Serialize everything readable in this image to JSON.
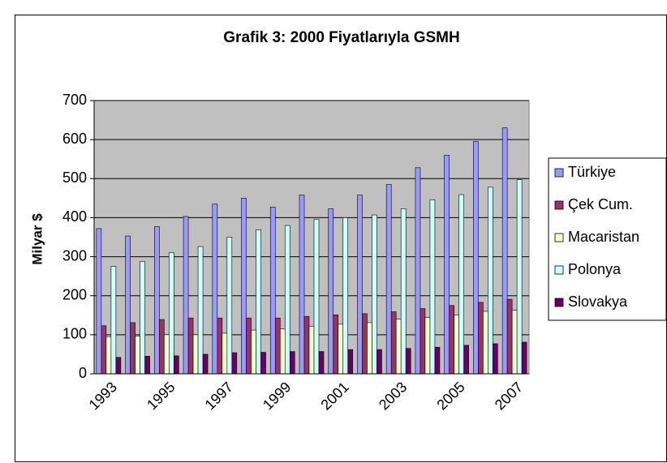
{
  "chart_data": {
    "type": "bar",
    "title": "Grafik 3: 2000 Fiyatlarıyla GSMH",
    "y_label": "Milyar $",
    "categories": [
      "1993",
      null,
      "1995",
      null,
      "1997",
      null,
      "1999",
      null,
      "2001",
      null,
      "2003",
      null,
      "2005",
      null,
      "2007"
    ],
    "series": [
      {
        "name": "Türkiye",
        "color": "#9999ff",
        "values": [
          372,
          353,
          377,
          403,
          435,
          450,
          427,
          458,
          423,
          458,
          485,
          528,
          560,
          595,
          630
        ]
      },
      {
        "name": "Çek Cum.",
        "color": "#993366",
        "values": [
          123,
          131,
          139,
          143,
          143,
          143,
          143,
          147,
          151,
          154,
          159,
          167,
          175,
          183,
          191
        ]
      },
      {
        "name": "Macaristan",
        "color": "#ffffcc",
        "values": [
          95,
          97,
          100,
          100,
          104,
          112,
          115,
          122,
          127,
          131,
          140,
          144,
          150,
          160,
          163
        ]
      },
      {
        "name": "Polonya",
        "color": "#ccffff",
        "values": [
          275,
          288,
          310,
          326,
          350,
          369,
          380,
          396,
          400,
          407,
          423,
          446,
          459,
          478,
          497
        ]
      },
      {
        "name": "Slovakya",
        "color": "#660066",
        "values": [
          42,
          45,
          46,
          50,
          54,
          55,
          57,
          57,
          62,
          62,
          65,
          68,
          73,
          77,
          81
        ]
      }
    ],
    "ylim": [
      0,
      700
    ],
    "yticks": [
      0,
      100,
      200,
      300,
      400,
      500,
      600,
      700
    ],
    "grid": true,
    "plot_background": "#c0c0c0",
    "legend": "right"
  }
}
